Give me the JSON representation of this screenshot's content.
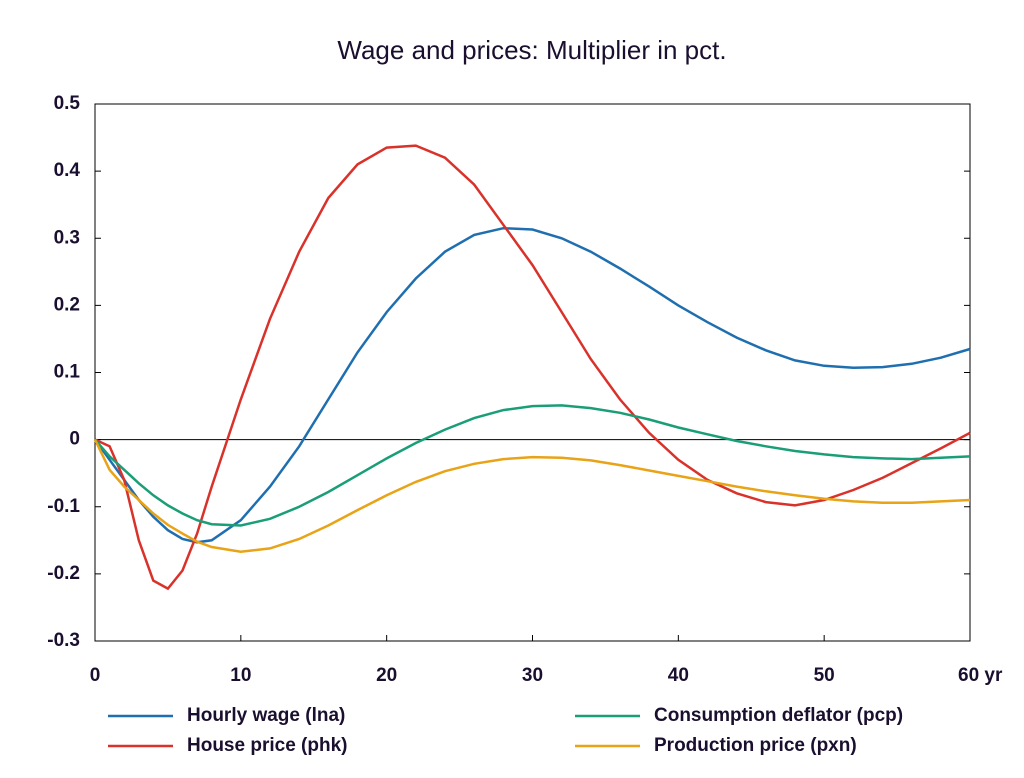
{
  "chart_data": {
    "type": "line",
    "title": "Wage and prices: Multiplier in pct.",
    "x": [
      0,
      1,
      2,
      3,
      4,
      5,
      6,
      7,
      8,
      10,
      12,
      14,
      16,
      18,
      20,
      22,
      24,
      26,
      28,
      30,
      32,
      34,
      36,
      38,
      40,
      42,
      44,
      46,
      48,
      50,
      52,
      54,
      56,
      58,
      60
    ],
    "series": [
      {
        "name": "Hourly wage (lna)",
        "color": "#1f6fb0",
        "values": [
          0,
          -0.03,
          -0.06,
          -0.09,
          -0.115,
          -0.135,
          -0.148,
          -0.153,
          -0.15,
          -0.12,
          -0.07,
          -0.01,
          0.06,
          0.13,
          0.19,
          0.24,
          0.28,
          0.305,
          0.315,
          0.313,
          0.3,
          0.28,
          0.255,
          0.228,
          0.2,
          0.175,
          0.152,
          0.133,
          0.118,
          0.11,
          0.107,
          0.108,
          0.113,
          0.122,
          0.135
        ]
      },
      {
        "name": "House price (phk)",
        "color": "#d9322a",
        "values": [
          0,
          -0.01,
          -0.06,
          -0.15,
          -0.21,
          -0.222,
          -0.195,
          -0.14,
          -0.07,
          0.06,
          0.18,
          0.28,
          0.36,
          0.41,
          0.435,
          0.438,
          0.42,
          0.38,
          0.32,
          0.26,
          0.19,
          0.12,
          0.06,
          0.01,
          -0.03,
          -0.06,
          -0.08,
          -0.093,
          -0.098,
          -0.09,
          -0.075,
          -0.057,
          -0.035,
          -0.013,
          0.01
        ]
      },
      {
        "name": "Consumption deflator (pcp)",
        "color": "#1a9e77",
        "values": [
          0,
          -0.025,
          -0.045,
          -0.065,
          -0.083,
          -0.098,
          -0.11,
          -0.12,
          -0.126,
          -0.128,
          -0.118,
          -0.1,
          -0.078,
          -0.053,
          -0.028,
          -0.005,
          0.015,
          0.032,
          0.044,
          0.05,
          0.051,
          0.047,
          0.04,
          0.03,
          0.018,
          0.008,
          -0.002,
          -0.01,
          -0.017,
          -0.022,
          -0.026,
          -0.028,
          -0.029,
          -0.027,
          -0.025
        ]
      },
      {
        "name": "Production price (pxn)",
        "color": "#e8a317",
        "values": [
          0,
          -0.045,
          -0.07,
          -0.09,
          -0.11,
          -0.127,
          -0.14,
          -0.152,
          -0.16,
          -0.167,
          -0.162,
          -0.148,
          -0.128,
          -0.105,
          -0.083,
          -0.063,
          -0.047,
          -0.036,
          -0.029,
          -0.026,
          -0.027,
          -0.031,
          -0.038,
          -0.046,
          -0.054,
          -0.062,
          -0.07,
          -0.077,
          -0.083,
          -0.088,
          -0.092,
          -0.094,
          -0.094,
          -0.092,
          -0.09
        ]
      }
    ],
    "xlim": [
      0,
      60
    ],
    "xticks": [
      0,
      10,
      20,
      30,
      40,
      50,
      {
        "value": 60,
        "label": "60 yr"
      }
    ],
    "ylim": [
      -0.3,
      0.5
    ],
    "yticks": [
      -0.3,
      -0.2,
      -0.1,
      0,
      0.1,
      0.2,
      0.3,
      0.4,
      0.5
    ],
    "grid": false
  }
}
